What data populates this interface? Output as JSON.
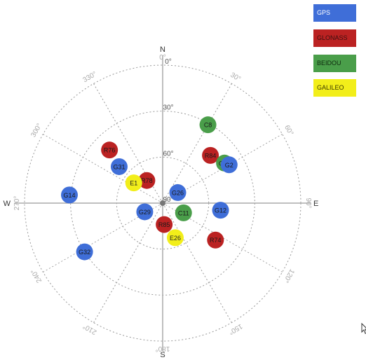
{
  "legend": [
    {
      "label": "GPS",
      "color": "#3f6ed8"
    },
    {
      "label": "GLONASS",
      "color": "#bb2222"
    },
    {
      "label": "BEIDOU",
      "color": "#4a9e4a"
    },
    {
      "label": "GALILEO",
      "color": "#f2ee1a"
    }
  ],
  "compass": {
    "north": "N",
    "south": "S",
    "east": "E",
    "west": "W"
  },
  "azimuth_labels": [
    "0°",
    "30°",
    "60°",
    "90°",
    "120°",
    "150°",
    "180°",
    "210°",
    "240°",
    "270°",
    "300°",
    "330°"
  ],
  "elevation_labels": [
    "0°",
    "30°",
    "60°",
    "90°"
  ],
  "satellites": [
    {
      "id": "C8",
      "system": "BEIDOU",
      "az": 30,
      "el": 31
    },
    {
      "id": "R84",
      "system": "GLONASS",
      "az": 45,
      "el": 46
    },
    {
      "id": "C13",
      "system": "BEIDOU",
      "az": 57,
      "el": 42
    },
    {
      "id": "G2",
      "system": "GPS",
      "az": 60,
      "el": 40
    },
    {
      "id": "G12",
      "system": "GPS",
      "az": 97,
      "el": 52
    },
    {
      "id": "R74",
      "system": "GLONASS",
      "az": 125,
      "el": 48
    },
    {
      "id": "E26",
      "system": "GALILEO",
      "az": 160,
      "el": 66
    },
    {
      "id": "R85",
      "system": "GLONASS",
      "az": 176,
      "el": 76
    },
    {
      "id": "G29",
      "system": "GPS",
      "az": 244,
      "el": 77
    },
    {
      "id": "G32",
      "system": "GPS",
      "az": 238,
      "el": 30
    },
    {
      "id": "G14",
      "system": "GPS",
      "az": 275,
      "el": 29
    },
    {
      "id": "G31",
      "system": "GPS",
      "az": 310,
      "el": 53
    },
    {
      "id": "R76",
      "system": "GLONASS",
      "az": 315,
      "el": 41
    },
    {
      "id": "R78",
      "system": "GLONASS",
      "az": 325,
      "el": 72
    },
    {
      "id": "E1",
      "system": "GALILEO",
      "az": 305,
      "el": 67
    },
    {
      "id": "G26",
      "system": "GPS",
      "az": 55,
      "el": 78
    },
    {
      "id": "C11",
      "system": "BEIDOU",
      "az": 115,
      "el": 75
    }
  ]
}
